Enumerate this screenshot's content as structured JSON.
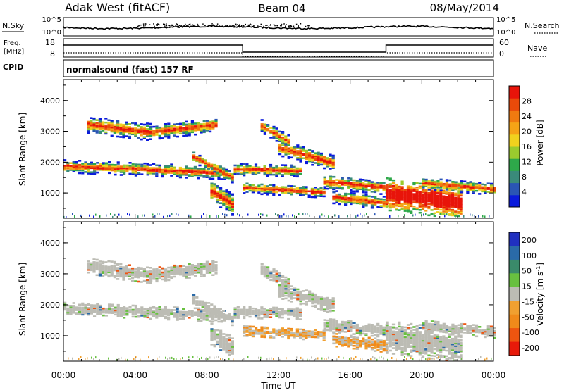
{
  "header": {
    "station": "Adak West (fitACF)",
    "beam": "Beam 04",
    "date": "08/May/2014"
  },
  "status_panel": {
    "nsky_label": "N.Sky",
    "nsky_ticks": [
      "10^5",
      "10^0"
    ],
    "nsearch_label": "N.Search",
    "freq_label": "Freq.",
    "freq_unit": "[MHz]",
    "freq_ticks": [
      "18",
      "8"
    ],
    "nave_label": "Nave",
    "nave_ticks": [
      "60",
      "0"
    ],
    "cpid_label": "CPID",
    "cpid_value": "normalsound (fast) 157 RF"
  },
  "chart_data": [
    {
      "type": "heatmap",
      "name": "power",
      "ylabel": "Slant Range [km]",
      "yticks": [
        "4000",
        "3000",
        "2000",
        "1000"
      ],
      "ylim": [
        180,
        4680
      ],
      "xlim_hours": [
        0,
        24
      ],
      "colorbar": {
        "label": "Power [dB]",
        "ticks": [
          "28",
          "24",
          "20",
          "16",
          "12",
          "8",
          "4"
        ],
        "colors": [
          "#0a1adc",
          "#2a55b4",
          "#3a8a7a",
          "#2ea84a",
          "#9acb2e",
          "#f0d21e",
          "#f5a316",
          "#f07a10",
          "#ea4a0a",
          "#e8140a"
        ]
      }
    },
    {
      "type": "heatmap",
      "name": "velocity",
      "ylabel": "Slant Range [km]",
      "yticks": [
        "4000",
        "3000",
        "2000",
        "1000"
      ],
      "ylim": [
        180,
        4680
      ],
      "xlim_hours": [
        0,
        24
      ],
      "colorbar": {
        "label_main": "Velocity [m s",
        "label_sup": "-1",
        "label_end": "]",
        "ticks": [
          "200",
          "100",
          "50",
          "15",
          "-15",
          "-50",
          "-100",
          "-200"
        ],
        "colors": [
          "#2030c0",
          "#2a6aa8",
          "#3a8a6a",
          "#68c040",
          "#bcbcb4",
          "#f0a030",
          "#f08a1a",
          "#ee5510",
          "#e81a0a"
        ]
      }
    }
  ],
  "xaxis": {
    "ticks": [
      "00:00",
      "04:00",
      "08:00",
      "12:00",
      "16:00",
      "20:00",
      "00:00"
    ],
    "label": "Time UT"
  }
}
